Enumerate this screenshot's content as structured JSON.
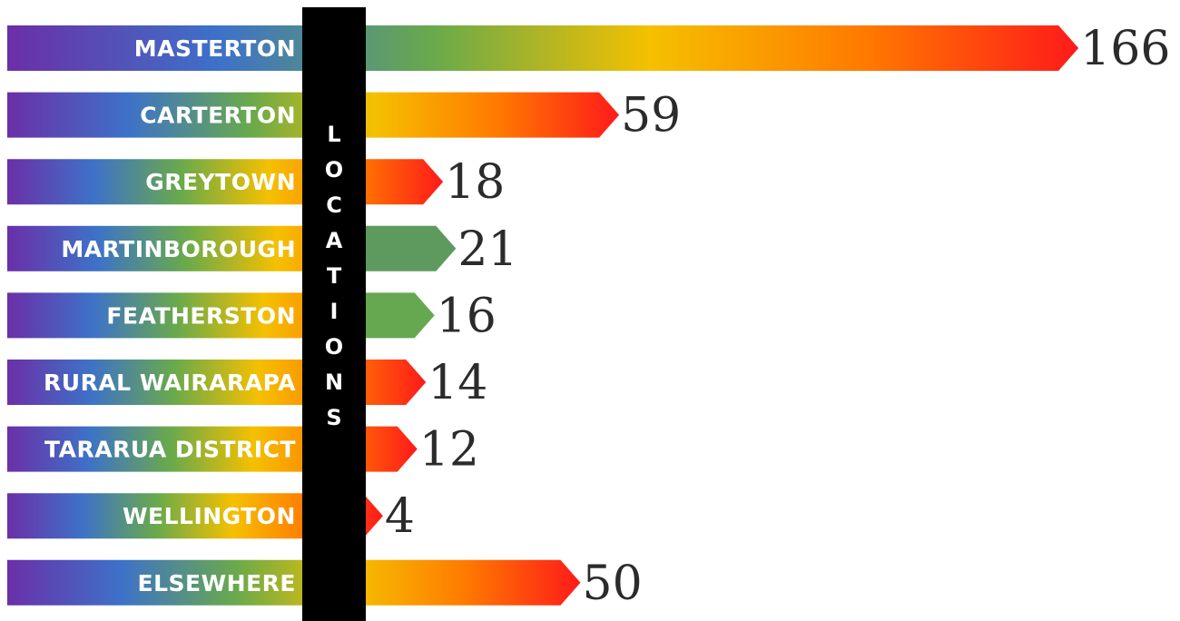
{
  "chart_data": {
    "type": "bar",
    "orientation": "horizontal",
    "categories": [
      "MASTERTON",
      "CARTERTON",
      "GREYTOWN",
      "MARTINBOROUGH",
      "FEATHERSTON",
      "RURAL WAIRARAPA",
      "TARARUA DISTRICT",
      "WELLINGTON",
      "ELSEWHERE"
    ],
    "values": [
      166,
      59,
      18,
      21,
      16,
      14,
      12,
      4,
      50
    ],
    "title": "",
    "xlabel": "",
    "ylabel": "LOCATIONS",
    "xlim": [
      0,
      166
    ],
    "grid": false,
    "legend": "none",
    "data_labels": true
  },
  "colors": {
    "gradient_stops": [
      "#6b2fa8",
      "#3d72c8",
      "#6aaa4a",
      "#f5c000",
      "#ff7a00",
      "#ff1a1a"
    ],
    "martinborough_fill": "#5e9a5e",
    "featherston_fill": "#66a84f",
    "axis_band": "#000000",
    "value_text": "#2b2b2b"
  }
}
